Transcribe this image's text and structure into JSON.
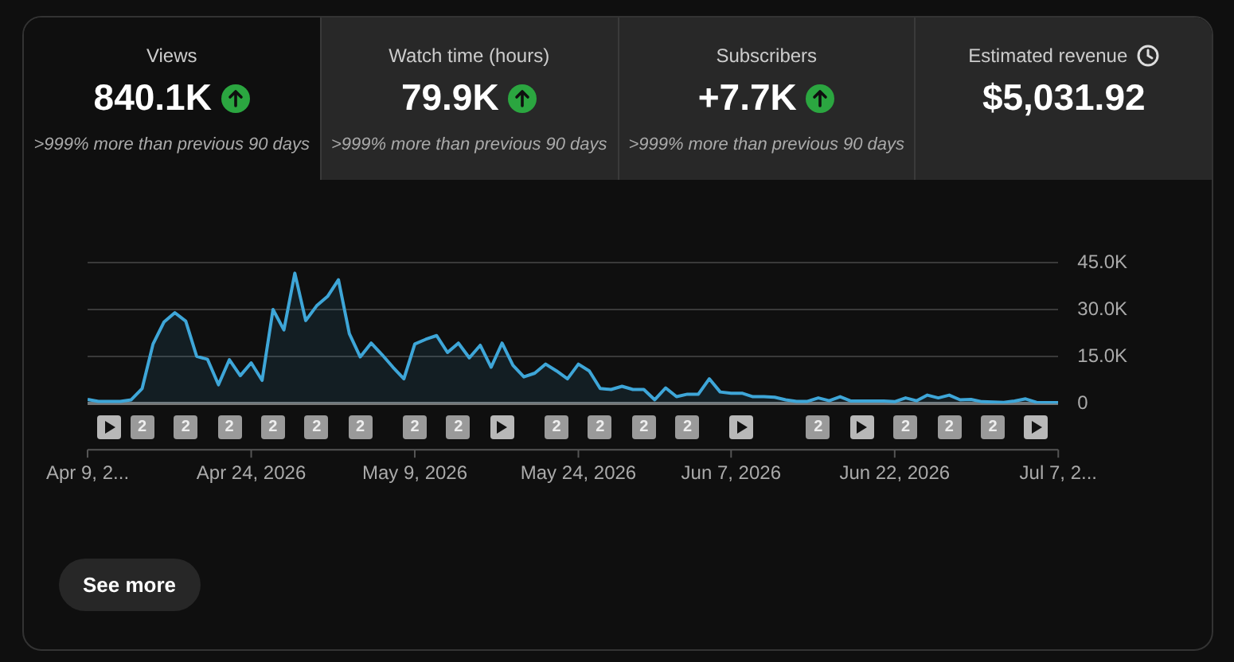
{
  "chart_data": [
    {
      "type": "other",
      "categories": [
        "Views",
        "Watch time (hours)",
        "Subscribers",
        "Estimated revenue"
      ],
      "annotations": [
        "840.1K",
        "79.9K",
        "+7.7K",
        "$5,031.92",
        ">999% more than previous 90 days",
        ">999% more than previous 90 days",
        ">999% more than previous 90 days"
      ]
    },
    {
      "type": "area",
      "color": "#3ea6d8",
      "x": [
        "2026-04-09",
        "2026-04-10",
        "2026-04-11",
        "2026-04-12",
        "2026-04-13",
        "2026-04-14",
        "2026-04-15",
        "2026-04-16",
        "2026-04-17",
        "2026-04-18",
        "2026-04-19",
        "2026-04-20",
        "2026-04-21",
        "2026-04-22",
        "2026-04-23",
        "2026-04-24",
        "2026-04-25",
        "2026-04-26",
        "2026-04-27",
        "2026-04-28",
        "2026-04-29",
        "2026-04-30",
        "2026-05-01",
        "2026-05-02",
        "2026-05-03",
        "2026-05-04",
        "2026-05-05",
        "2026-05-06",
        "2026-05-07",
        "2026-05-08",
        "2026-05-09",
        "2026-05-10",
        "2026-05-11",
        "2026-05-12",
        "2026-05-13",
        "2026-05-14",
        "2026-05-15",
        "2026-05-16",
        "2026-05-17",
        "2026-05-18",
        "2026-05-19",
        "2026-05-20",
        "2026-05-21",
        "2026-05-22",
        "2026-05-23",
        "2026-05-24",
        "2026-05-25",
        "2026-05-26",
        "2026-05-27",
        "2026-05-28",
        "2026-05-29",
        "2026-05-30",
        "2026-05-31",
        "2026-06-01",
        "2026-06-02",
        "2026-06-03",
        "2026-06-04",
        "2026-06-05",
        "2026-06-06",
        "2026-06-07",
        "2026-06-08",
        "2026-06-09",
        "2026-06-10",
        "2026-06-11",
        "2026-06-12",
        "2026-06-13",
        "2026-06-14",
        "2026-06-15",
        "2026-06-16",
        "2026-06-17",
        "2026-06-18",
        "2026-06-19",
        "2026-06-20",
        "2026-06-21",
        "2026-06-22",
        "2026-06-23",
        "2026-06-24",
        "2026-06-25",
        "2026-06-26",
        "2026-06-27",
        "2026-06-28",
        "2026-06-29",
        "2026-06-30",
        "2026-07-01",
        "2026-07-02",
        "2026-07-03",
        "2026-07-04",
        "2026-07-05",
        "2026-07-06",
        "2026-07-07"
      ],
      "values": [
        1300,
        700,
        700,
        700,
        1200,
        4800,
        19000,
        26000,
        29000,
        26300,
        15100,
        14100,
        6000,
        14000,
        8900,
        13000,
        7400,
        30000,
        23500,
        41600,
        26500,
        31200,
        34200,
        39500,
        22300,
        14900,
        19300,
        15600,
        11600,
        7900,
        19000,
        20500,
        21700,
        16300,
        19300,
        14600,
        18600,
        11600,
        19300,
        12200,
        8500,
        9700,
        12600,
        10400,
        7900,
        12600,
        10400,
        4800,
        4500,
        5500,
        4500,
        4500,
        1200,
        5000,
        2200,
        3000,
        3000,
        7900,
        3700,
        3300,
        3300,
        2200,
        2200,
        2000,
        1200,
        700,
        700,
        1800,
        900,
        2200,
        800,
        800,
        800,
        800,
        600,
        1800,
        900,
        2700,
        1800,
        2700,
        1200,
        1300,
        600,
        500,
        400,
        800,
        1500,
        400,
        300,
        300
      ],
      "xlim": [
        "2026-04-09",
        "2026-07-07"
      ],
      "xticks": [
        {
          "value": "2026-04-09",
          "label": "Apr 9, 2..."
        },
        {
          "value": "2026-04-24",
          "label": "Apr 24, 2026"
        },
        {
          "value": "2026-05-09",
          "label": "May 9, 2026"
        },
        {
          "value": "2026-05-24",
          "label": "May 24, 2026"
        },
        {
          "value": "2026-06-07",
          "label": "Jun 7, 2026"
        },
        {
          "value": "2026-06-22",
          "label": "Jun 22, 2026"
        },
        {
          "value": "2026-07-07",
          "label": "Jul 7, 2..."
        }
      ],
      "ylim": [
        0,
        45000
      ],
      "yticks": [
        0,
        {
          "value": 15000,
          "label": "15.0K"
        },
        {
          "value": 30000,
          "label": "30.0K"
        },
        {
          "value": 45000,
          "label": "45.0K"
        }
      ],
      "grid": "y",
      "annotations": [
        "2",
        "2",
        "2",
        "2",
        "2",
        "2",
        "2",
        "2",
        "2",
        "2",
        "2",
        "2",
        "2",
        "2",
        "2",
        "2",
        "See more"
      ]
    }
  ]
}
